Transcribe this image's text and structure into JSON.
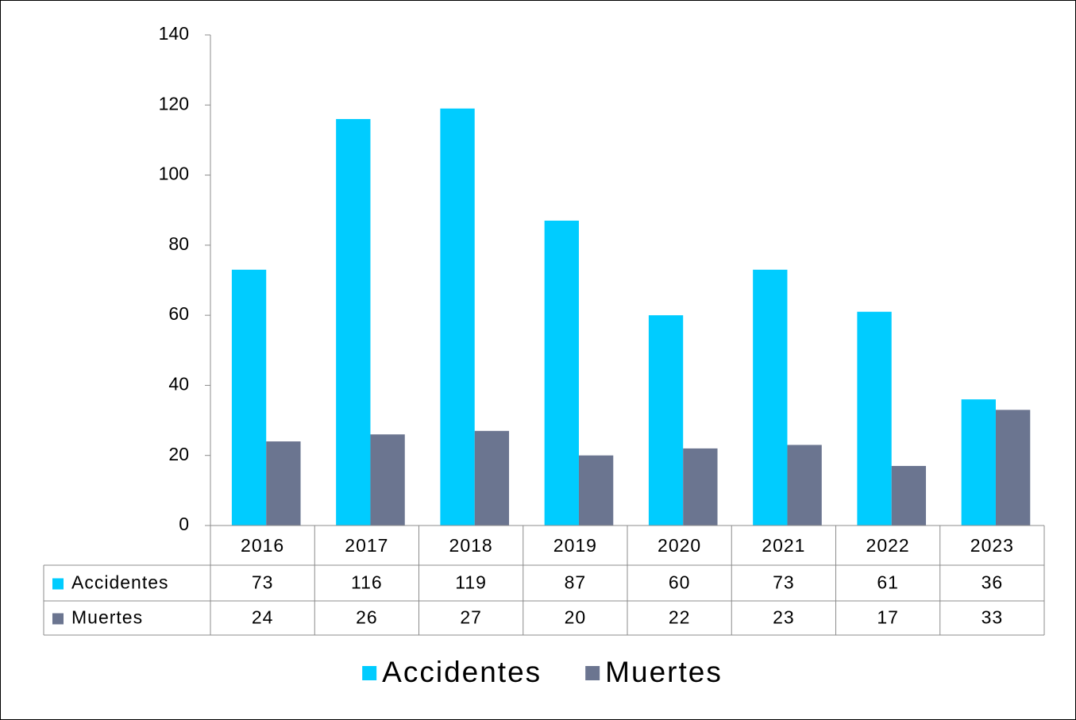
{
  "chart_data": {
    "type": "bar",
    "categories": [
      "2016",
      "2017",
      "2018",
      "2019",
      "2020",
      "2021",
      "2022",
      "2023"
    ],
    "series": [
      {
        "name": "Accidentes",
        "color": "#00ccff",
        "values": [
          73,
          116,
          119,
          87,
          60,
          73,
          61,
          36
        ]
      },
      {
        "name": "Muertes",
        "color": "#6b7590",
        "values": [
          24,
          26,
          27,
          20,
          22,
          23,
          17,
          33
        ]
      }
    ],
    "ylim": [
      0,
      140
    ],
    "yticks": [
      0,
      20,
      40,
      60,
      80,
      100,
      120,
      140
    ],
    "grid": false,
    "legend": "bottom"
  }
}
